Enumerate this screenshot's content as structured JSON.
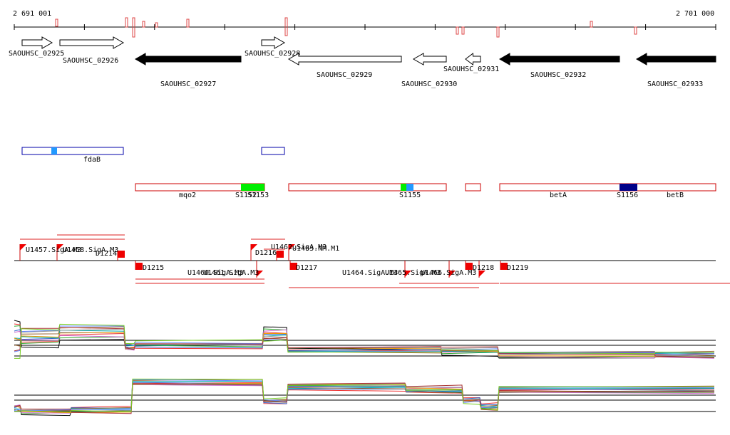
{
  "ruler": {
    "start": "2 691 001",
    "end": "2 701 000"
  },
  "genes": [
    {
      "label": "SAOUHSC_02925"
    },
    {
      "label": "SAOUHSC_02926"
    },
    {
      "label": "SAOUHSC_02927"
    },
    {
      "label": "SAOUHSC_02928"
    },
    {
      "label": "SAOUHSC_02929"
    },
    {
      "label": "SAOUHSC_02930"
    },
    {
      "label": "SAOUHSC_02931"
    },
    {
      "label": "SAOUHSC_02932"
    },
    {
      "label": "SAOUHSC_02933"
    }
  ],
  "features": [
    {
      "label": "fdaB"
    },
    {
      "label": "mqo2"
    },
    {
      "label": "S1152"
    },
    {
      "label": "S1153"
    },
    {
      "label": "S1155"
    },
    {
      "label": "betA"
    },
    {
      "label": "S1156"
    },
    {
      "label": "betB"
    }
  ],
  "sites": [
    {
      "label": "U1457.SigA.M3"
    },
    {
      "label": "U1458.SigA.M3"
    },
    {
      "label": "D1214"
    },
    {
      "label": "D1215"
    },
    {
      "label": "U1460.SigA.M3"
    },
    {
      "label": "U1461.SigA.M3"
    },
    {
      "label": "D1216"
    },
    {
      "label": "U1462.SigA.M3"
    },
    {
      "label": "U1463.NM.M1"
    },
    {
      "label": "D1217"
    },
    {
      "label": "U1464.SigA.M3"
    },
    {
      "label": "U1465.SigA.M3"
    },
    {
      "label": "U1466.SigA.M3"
    },
    {
      "label": "D1218"
    },
    {
      "label": "D1219"
    }
  ]
}
